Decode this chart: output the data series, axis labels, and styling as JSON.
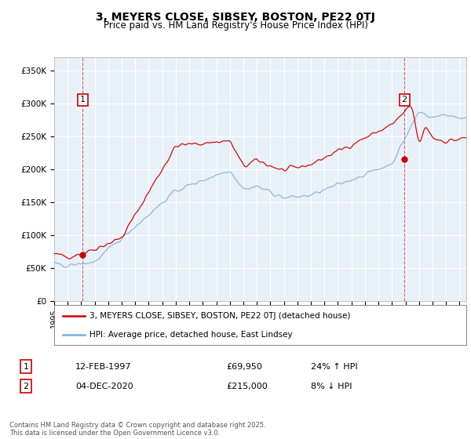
{
  "title": "3, MEYERS CLOSE, SIBSEY, BOSTON, PE22 0TJ",
  "subtitle": "Price paid vs. HM Land Registry's House Price Index (HPI)",
  "legend_line1": "3, MEYERS CLOSE, SIBSEY, BOSTON, PE22 0TJ (detached house)",
  "legend_line2": "HPI: Average price, detached house, East Lindsey",
  "annotation1_label": "1",
  "annotation1_date": "12-FEB-1997",
  "annotation1_price": "£69,950",
  "annotation1_hpi": "24% ↑ HPI",
  "annotation2_label": "2",
  "annotation2_date": "04-DEC-2020",
  "annotation2_price": "£215,000",
  "annotation2_hpi": "8% ↓ HPI",
  "footer": "Contains HM Land Registry data © Crown copyright and database right 2025.\nThis data is licensed under the Open Government Licence v3.0.",
  "red_color": "#cc0000",
  "blue_color": "#7bafd4",
  "plot_bg": "#e8f0f8",
  "ylim": [
    0,
    370000
  ],
  "year_start": 1995,
  "year_end": 2025,
  "sale1_year": 1997.12,
  "sale1_price": 69950,
  "sale2_year": 2020.92,
  "sale2_price": 215000
}
